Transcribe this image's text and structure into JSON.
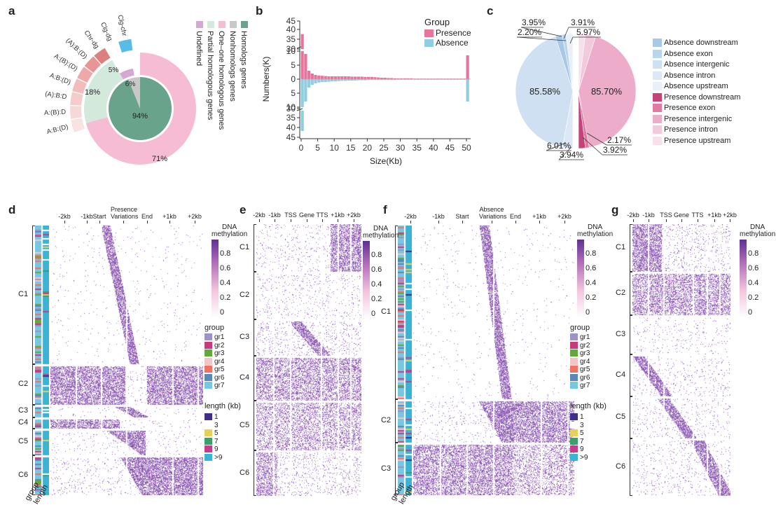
{
  "panels": {
    "a": "a",
    "b": "b",
    "c": "c",
    "d": "d",
    "e": "e",
    "f": "f",
    "g": "g"
  },
  "colors": {
    "homologs": "#6aa38c",
    "nonhomologs": "#c8c8c8",
    "one_one": "#f5bcd3",
    "partial": "#d2e9dc",
    "undefined": "#d3a9d3",
    "presence": "#e8749d",
    "absence": "#8fcde0",
    "heat_dark": "#6a3d9a"
  },
  "chart_data": [
    {
      "panel": "a",
      "type": "pie",
      "inner_donut": [
        {
          "label": "Homologs genes",
          "value": 94,
          "text": "94%",
          "color": "#6aa38c"
        },
        {
          "label": "Nonhomologs genes",
          "value": 6,
          "text": "6%",
          "color": "#c8c8c8"
        }
      ],
      "outer_ring": [
        {
          "label": "One–one homologous genes",
          "value": 71,
          "text": "71%",
          "color": "#f5bcd3"
        },
        {
          "label": "Partial homologous genes",
          "value": 18,
          "text": "18%",
          "color": "#d2e9dc"
        },
        {
          "label": "Undefined",
          "value": 5,
          "text": "5%",
          "color": "#d3a9d3"
        }
      ],
      "legend": [
        "Homologs genes",
        "Nonhomologs genes",
        "One–one homologous genes",
        "Partial homologous genes",
        "Undefined"
      ],
      "fan_labels": [
        "A:B:(D)",
        "A:(B):D",
        "(A):B:D",
        "A:B:(D)",
        "A:(B):(D)",
        "(A):B:(D)",
        "Chr-dg",
        "Clg-dg",
        "Clg-chr"
      ]
    },
    {
      "panel": "b",
      "type": "bar",
      "ylabel": "Numbers(K)",
      "xlabel": "Size(Kb)",
      "x_ticks": [
        "0",
        "5",
        "10",
        "15",
        "20",
        "25",
        "30",
        "35",
        "40",
        "45",
        "50"
      ],
      "y_upper_ticks": [
        "45",
        "40",
        "35",
        "30",
        "10",
        "5",
        "0"
      ],
      "y_lower_ticks": [
        "5",
        "10",
        "30",
        "35",
        "40",
        "45"
      ],
      "legend_title": "Group",
      "series": [
        {
          "name": "Presence",
          "color": "#e8749d",
          "values": [
            38,
            9,
            3,
            2,
            1.5,
            1.3,
            1.2,
            1.1,
            1.0,
            1.0,
            1.0,
            1.0,
            1.0,
            1.0,
            1.0,
            0.9,
            0.9,
            0.9,
            0.9,
            0.8,
            0.8,
            0.8,
            0.7,
            0.6,
            0.5,
            0.5,
            0.4,
            0.4,
            0.3,
            0.3,
            0.3,
            0.3,
            0.3,
            0.3,
            0.2,
            0.2,
            0.2,
            0.2,
            0.2,
            0.2,
            0.2,
            0.2,
            0.2,
            0.2,
            0.2,
            0.2,
            0.2,
            0.2,
            0.2,
            0.2,
            8.5
          ]
        },
        {
          "name": "Absence",
          "color": "#8fcde0",
          "values": [
            42,
            8,
            3,
            2,
            1.5,
            1.2,
            1.0,
            1.0,
            0.9,
            0.8,
            0.8,
            0.7,
            0.6,
            0.6,
            0.5,
            0.5,
            0.5,
            0.4,
            0.4,
            0.4,
            0.3,
            0.3,
            0.3,
            0.3,
            0.3,
            0.3,
            0.3,
            0.3,
            0.3,
            0.2,
            0.2,
            0.2,
            0.2,
            0.2,
            0.2,
            0.2,
            0.2,
            0.2,
            0.2,
            0.2,
            0.2,
            0.2,
            0.2,
            0.2,
            0.2,
            0.2,
            0.2,
            0.2,
            0.2,
            0.2,
            8.0
          ]
        }
      ]
    },
    {
      "panel": "c",
      "type": "pie",
      "slices": [
        {
          "label": "Absence downstream",
          "value": 3.95,
          "text": "3.95%",
          "color": "#a8c8e8"
        },
        {
          "label": "Absence exon",
          "value": 2.2,
          "text": "2.20%",
          "color": "#b9d5ee"
        },
        {
          "label": "Absence intergenic",
          "value": 85.58,
          "text": "85.58%",
          "color": "#cfe0f2"
        },
        {
          "label": "Absence intron",
          "value": 6.01,
          "text": "6.01%",
          "color": "#dce8f5"
        },
        {
          "label": "Absence upstream",
          "value": 3.94,
          "text": "3.94%",
          "color": "#e9f0f9"
        },
        {
          "label": "Presence downstream",
          "value": 3.92,
          "text": "3.92%",
          "color": "#c5427a"
        },
        {
          "label": "Presence exon",
          "value": 2.17,
          "text": "2.17%",
          "color": "#e17aa2"
        },
        {
          "label": "Presence intergenic",
          "value": 85.7,
          "text": "85.70%",
          "color": "#eeaccb"
        },
        {
          "label": "Presence intron",
          "value": 5.97,
          "text": "5.97%",
          "color": "#f3c9dc"
        },
        {
          "label": "Presence upstream",
          "value": 3.91,
          "text": "3.91%",
          "color": "#f8e0eb"
        }
      ]
    }
  ],
  "heatmaps": {
    "d": {
      "columns": [
        "-2kb",
        "-1kb",
        "Start",
        "Presence\nVariations",
        "End",
        "+1kb",
        "+2kb"
      ],
      "clusters": [
        "C1",
        "C2",
        "C3",
        "C4",
        "C5",
        "C6"
      ]
    },
    "e": {
      "columns": [
        "-2kb",
        "-1kb",
        "TSS",
        "Gene",
        "TTS",
        "+1kb",
        "+2kb"
      ],
      "clusters": [
        "C1",
        "C2",
        "C3",
        "C4",
        "C5",
        "C6"
      ]
    },
    "f": {
      "columns": [
        "-2kb",
        "-1kb",
        "Start",
        "Absence\nVariations",
        "End",
        "+1kb",
        "+2kb"
      ],
      "clusters": [
        "C1",
        "C2",
        "C3"
      ]
    },
    "g": {
      "columns": [
        "-2kb",
        "-1kb",
        "TSS",
        "Gene",
        "TTS",
        "+1kb",
        "+2kb"
      ],
      "clusters": [
        "C1",
        "C2",
        "C3",
        "C4",
        "C5",
        "C6"
      ]
    }
  },
  "legend": {
    "dna_title": "DNA\nmethylation",
    "dna_ticks": [
      "0.8",
      "0.6",
      "0.4",
      "0.2",
      "0"
    ],
    "group_title": "group",
    "groups": [
      {
        "label": "gr1",
        "color": "#9d93c6"
      },
      {
        "label": "gr2",
        "color": "#c83a7a"
      },
      {
        "label": "gr3",
        "color": "#62a83d"
      },
      {
        "label": "gr4",
        "color": "#f2c6c6"
      },
      {
        "label": "gr5",
        "color": "#ee7365"
      },
      {
        "label": "gr6",
        "color": "#5b88b5"
      },
      {
        "label": "gr7",
        "color": "#77c6e2"
      }
    ],
    "length_title": "length (kb)",
    "lengths": [
      {
        "label": "1",
        "color": "#3d2f8c"
      },
      {
        "label": "3",
        "color": "#ffffff"
      },
      {
        "label": "5",
        "color": "#e6cf5a"
      },
      {
        "label": "7",
        "color": "#3b9e6d"
      },
      {
        "label": "9",
        "color": "#c33d8c"
      },
      {
        "label": ">9",
        "color": "#39b4d6"
      }
    ]
  },
  "bottom_labels": {
    "group": "group",
    "length": "length"
  }
}
